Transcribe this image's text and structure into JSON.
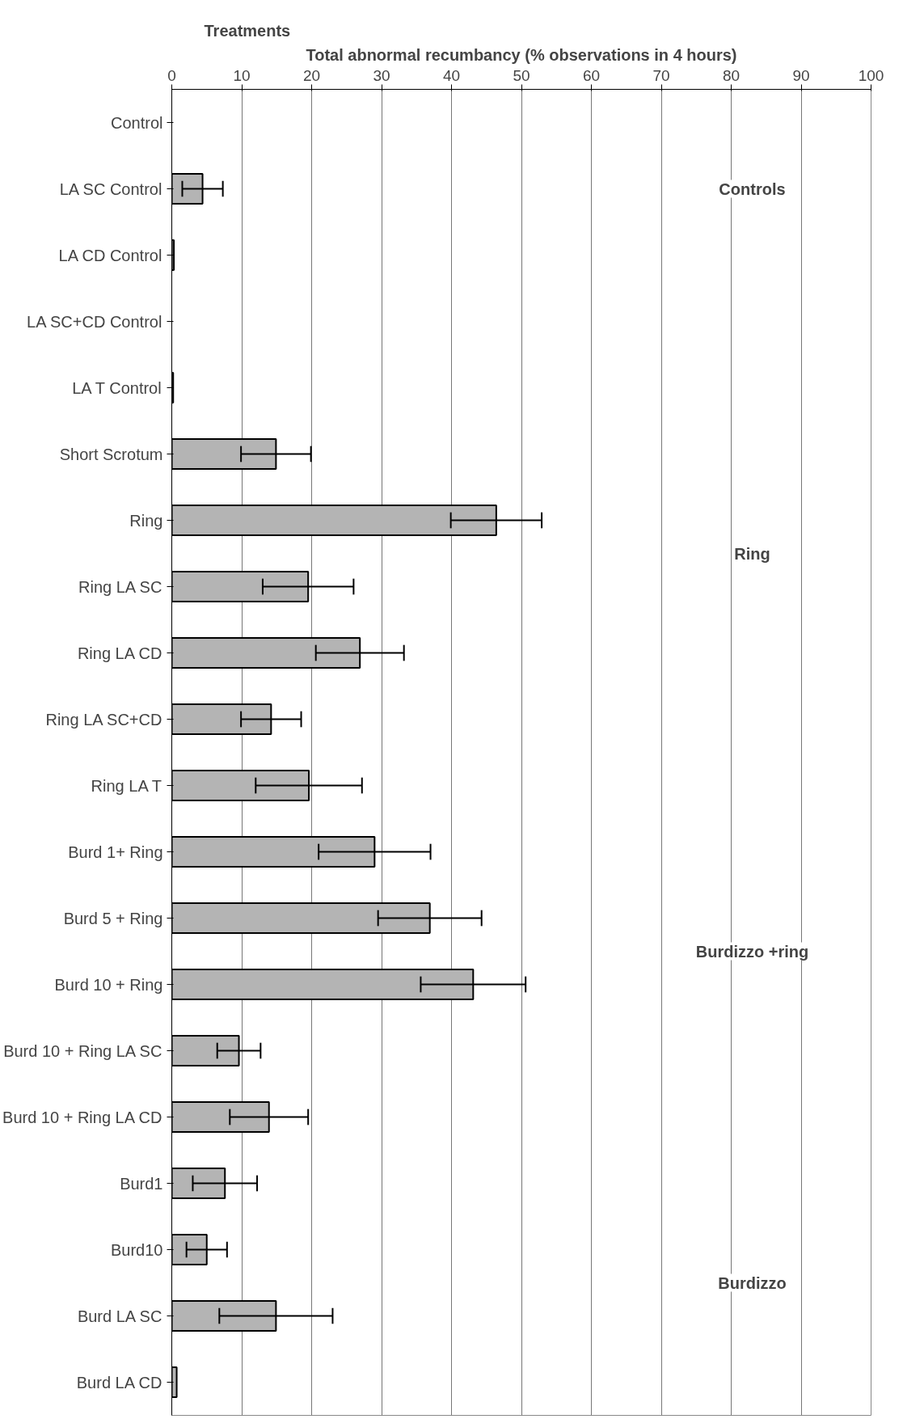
{
  "chart_data": {
    "type": "bar",
    "orientation": "horizontal",
    "xlabel": "Total abnormal recumbancy (% observations in 4 hours)",
    "ylabel": "Treatments",
    "categories": [
      "Control",
      "LA SC Control",
      "LA CD Control",
      "LA SC+CD Control",
      "LA T Control",
      "Short Scrotum",
      "Ring",
      "Ring LA SC",
      "Ring LA CD",
      "Ring LA SC+CD",
      "Ring LA T",
      "Burd 1+ Ring",
      "Burd 5 + Ring",
      "Burd 10 + Ring",
      "Burd 10 + Ring LA SC",
      "Burd 10 + Ring LA CD",
      "Burd1",
      "Burd10",
      "Burd LA SC",
      "Burd LA CD"
    ],
    "values": [
      0,
      4.4,
      0.3,
      0,
      0.2,
      14.9,
      46.4,
      19.5,
      26.9,
      14.2,
      19.6,
      29,
      36.9,
      43.1,
      9.6,
      13.9,
      7.6,
      5,
      14.9,
      0.7
    ],
    "errors": [
      null,
      2.9,
      null,
      null,
      null,
      5,
      6.5,
      6.5,
      6.3,
      4.3,
      7.6,
      8,
      7.4,
      7.5,
      3.1,
      5.6,
      4.6,
      2.9,
      8.1,
      null
    ],
    "color": "#b4b4b4",
    "xlim": [
      0,
      100
    ],
    "xticks": [
      0,
      10,
      20,
      30,
      40,
      50,
      60,
      70,
      80,
      90,
      100
    ],
    "grid": "x",
    "annotations": [
      "Controls",
      "Ring",
      "Burdizzo +ring",
      "Burdizzo"
    ]
  }
}
